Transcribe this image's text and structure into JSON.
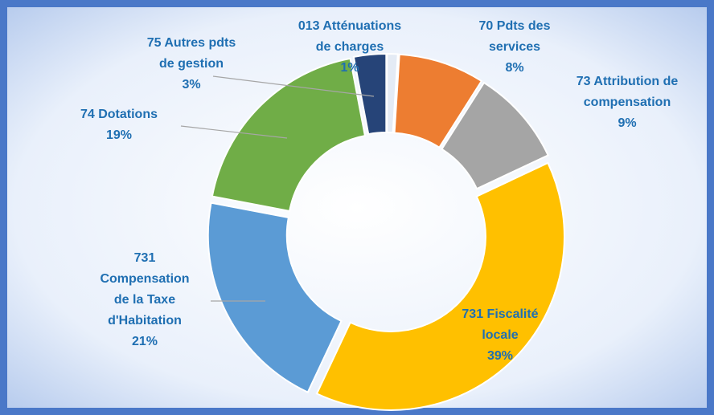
{
  "chart_data": {
    "type": "donut",
    "categories": [
      "013 Atténuations de charges",
      "70 Pdts des services",
      "73 Attribution de compensation",
      "731 Fiscalité locale",
      "731 Compensation de la Taxe d'Habitation",
      "74 Dotations",
      "75 Autres pdts de gestion"
    ],
    "values": [
      1,
      8,
      9,
      39,
      21,
      19,
      3
    ],
    "value_labels": [
      "1%",
      "8%",
      "9%",
      "39%",
      "21%",
      "19%",
      "3%"
    ],
    "colors": [
      "#e4ebf5",
      "#ed7d31",
      "#a5a5a5",
      "#ffc000",
      "#5b9bd5",
      "#70ad47",
      "#264478"
    ]
  }
}
